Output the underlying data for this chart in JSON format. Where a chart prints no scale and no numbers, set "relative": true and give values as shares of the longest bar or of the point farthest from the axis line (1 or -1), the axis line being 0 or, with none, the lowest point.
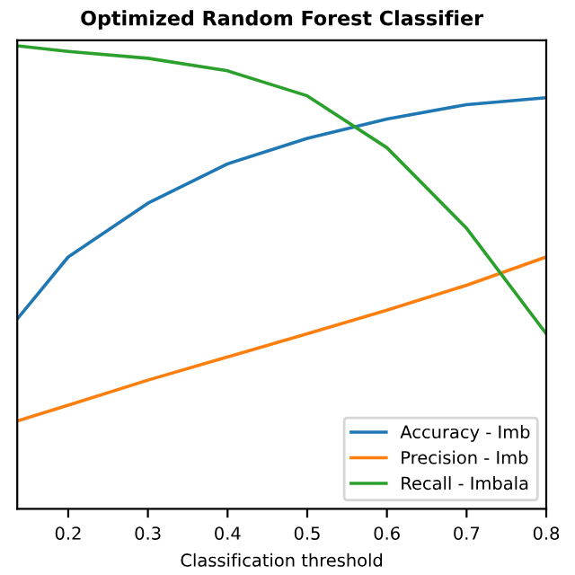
{
  "chart_data": {
    "type": "line",
    "title": "Optimized Random Forest Classifier",
    "xlabel": "Classification threshold",
    "relative": true,
    "x": [
      0.136,
      0.2,
      0.3,
      0.4,
      0.5,
      0.6,
      0.7,
      0.8
    ],
    "xlim": [
      0.136,
      0.8
    ],
    "xticks": [
      0.2,
      0.3,
      0.4,
      0.5,
      0.6,
      0.7,
      0.8
    ],
    "series": [
      {
        "name": "Accuracy - Imb",
        "color": "#1f77b4",
        "values": [
          0.41,
          0.544,
          0.66,
          0.745,
          0.8,
          0.842,
          0.873,
          0.888
        ]
      },
      {
        "name": "Precision - Imb",
        "color": "#ff7f0e",
        "values": [
          0.19,
          0.224,
          0.278,
          0.328,
          0.378,
          0.429,
          0.483,
          0.544
        ]
      },
      {
        "name": "Recall - Imbala",
        "color": "#2ca02c",
        "values": [
          1.0,
          0.988,
          0.973,
          0.946,
          0.892,
          0.78,
          0.606,
          0.378
        ]
      }
    ],
    "legend": "bottom right",
    "grid": false
  }
}
